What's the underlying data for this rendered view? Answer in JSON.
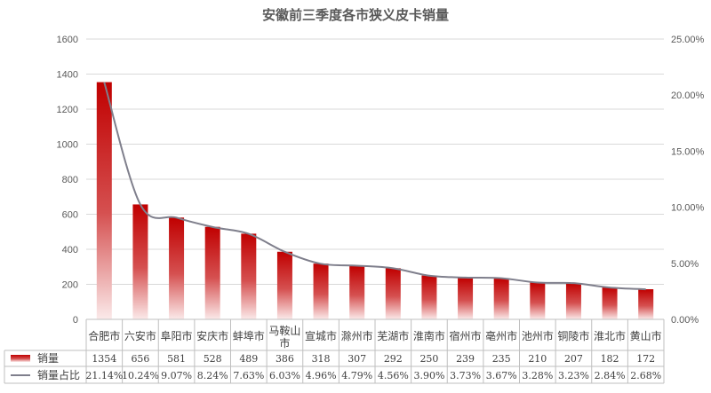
{
  "chart_data": {
    "type": "bar",
    "title": "安徽前三季度各市狭义皮卡销量",
    "categories": [
      "合肥市",
      "六安市",
      "阜阳市",
      "安庆市",
      "蚌埠市",
      "马鞍山市",
      "宣城市",
      "滁州市",
      "芜湖市",
      "淮南市",
      "宿州市",
      "亳州市",
      "池州市",
      "铜陵市",
      "淮北市",
      "黄山市"
    ],
    "series": [
      {
        "name": "销量",
        "type": "bar",
        "axis": "left",
        "color": "#c00000",
        "values": [
          1354,
          656,
          581,
          528,
          489,
          386,
          318,
          307,
          292,
          250,
          239,
          235,
          210,
          207,
          182,
          172
        ]
      },
      {
        "name": "销量占比",
        "type": "line",
        "axis": "right",
        "color": "#7f7f8c",
        "values": [
          21.14,
          10.24,
          9.07,
          8.24,
          7.63,
          6.03,
          4.96,
          4.79,
          4.56,
          3.9,
          3.73,
          3.67,
          3.28,
          3.23,
          2.84,
          2.68
        ],
        "labels": [
          "21.14%",
          "10.24%",
          "9.07%",
          "8.24%",
          "7.63%",
          "6.03%",
          "4.96%",
          "4.79%",
          "4.56%",
          "3.90%",
          "3.73%",
          "3.67%",
          "3.28%",
          "3.23%",
          "2.84%",
          "2.68%"
        ]
      }
    ],
    "ylim": [
      0,
      1600
    ],
    "yticks": [
      "0",
      "200",
      "400",
      "600",
      "800",
      "1000",
      "1200",
      "1400",
      "1600"
    ],
    "y2lim": [
      0,
      25
    ],
    "y2ticks": [
      "0.00%",
      "5.00%",
      "10.00%",
      "15.00%",
      "20.00%",
      "25.00%"
    ],
    "grid": true,
    "legend": "data-table"
  }
}
